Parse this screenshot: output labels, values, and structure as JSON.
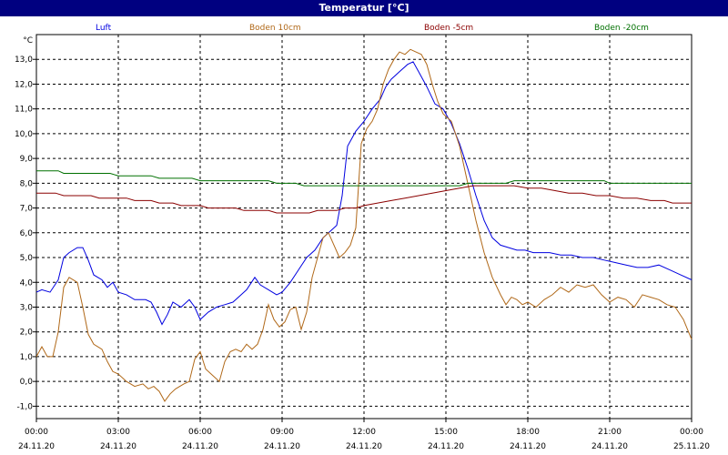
{
  "title": "Temperatur [°C]",
  "chart_data": {
    "type": "line",
    "ylabel": "°C",
    "ylim": [
      -1.5,
      14
    ],
    "yticks": [
      -1.0,
      0.0,
      1.0,
      2.0,
      3.0,
      4.0,
      5.0,
      6.0,
      7.0,
      8.0,
      9.0,
      10.0,
      11.0,
      12.0,
      13.0
    ],
    "ytick_labels": [
      "-1,0",
      "0,0",
      "1,0",
      "2,0",
      "3,0",
      "4,0",
      "5,0",
      "6,0",
      "7,0",
      "8,0",
      "9,0",
      "10,0",
      "11,0",
      "12,0",
      "13,0"
    ],
    "xlim": [
      0,
      24
    ],
    "xticks": [
      0,
      3,
      6,
      9,
      12,
      15,
      18,
      21,
      24
    ],
    "xtick_times": [
      "00:00",
      "03:00",
      "06:00",
      "09:00",
      "12:00",
      "15:00",
      "18:00",
      "21:00",
      "00:00"
    ],
    "xtick_dates": [
      "24.11.20",
      "24.11.20",
      "24.11.20",
      "24.11.20",
      "24.11.20",
      "24.11.20",
      "24.11.20",
      "24.11.20",
      "25.11.20"
    ],
    "grid": true,
    "legend_position": "top",
    "series": [
      {
        "name": "Luft",
        "color": "#0000e0",
        "x": [
          0,
          0.2,
          0.5,
          0.8,
          1.0,
          1.2,
          1.5,
          1.7,
          1.9,
          2.1,
          2.4,
          2.6,
          2.8,
          3.0,
          3.3,
          3.6,
          4.0,
          4.2,
          4.4,
          4.6,
          4.8,
          5.0,
          5.3,
          5.6,
          5.8,
          6.0,
          6.3,
          6.6,
          6.9,
          7.2,
          7.5,
          7.7,
          8.0,
          8.2,
          8.5,
          8.8,
          9.0,
          9.3,
          9.6,
          9.9,
          10.2,
          10.5,
          10.8,
          11.0,
          11.2,
          11.4,
          11.7,
          12.0,
          12.3,
          12.6,
          12.8,
          13.0,
          13.3,
          13.6,
          13.8,
          14.0,
          14.3,
          14.6,
          14.9,
          15.2,
          15.5,
          15.8,
          16.1,
          16.4,
          16.7,
          17.0,
          17.3,
          17.6,
          17.9,
          18.2,
          18.5,
          18.8,
          19.2,
          19.6,
          20.0,
          20.4,
          20.8,
          21.2,
          21.6,
          22.0,
          22.4,
          22.8,
          23.2,
          23.6,
          24.0
        ],
        "y": [
          3.6,
          3.7,
          3.6,
          4.1,
          5.0,
          5.2,
          5.4,
          5.4,
          4.9,
          4.3,
          4.1,
          3.8,
          4.0,
          3.6,
          3.5,
          3.3,
          3.3,
          3.2,
          2.8,
          2.3,
          2.7,
          3.2,
          3.0,
          3.3,
          3.0,
          2.5,
          2.8,
          3.0,
          3.1,
          3.2,
          3.5,
          3.7,
          4.2,
          3.9,
          3.7,
          3.5,
          3.6,
          4.0,
          4.5,
          5.0,
          5.3,
          5.8,
          6.1,
          6.3,
          7.5,
          9.5,
          10.1,
          10.5,
          11.0,
          11.4,
          11.9,
          12.2,
          12.5,
          12.8,
          12.9,
          12.5,
          11.9,
          11.2,
          11.0,
          10.4,
          9.6,
          8.6,
          7.5,
          6.5,
          5.8,
          5.5,
          5.4,
          5.3,
          5.3,
          5.2,
          5.2,
          5.2,
          5.1,
          5.1,
          5.0,
          5.0,
          4.9,
          4.8,
          4.7,
          4.6,
          4.6,
          4.7,
          4.5,
          4.3,
          4.1
        ]
      },
      {
        "name": "Boden 10cm",
        "color": "#b06818",
        "x": [
          0,
          0.2,
          0.4,
          0.6,
          0.8,
          1.0,
          1.2,
          1.5,
          1.7,
          1.9,
          2.1,
          2.4,
          2.6,
          2.8,
          3.0,
          3.3,
          3.6,
          3.9,
          4.1,
          4.3,
          4.5,
          4.7,
          4.9,
          5.1,
          5.4,
          5.6,
          5.8,
          6.0,
          6.2,
          6.5,
          6.7,
          6.9,
          7.1,
          7.3,
          7.5,
          7.7,
          7.9,
          8.1,
          8.3,
          8.5,
          8.7,
          8.9,
          9.1,
          9.3,
          9.5,
          9.7,
          9.9,
          10.1,
          10.3,
          10.5,
          10.7,
          10.9,
          11.1,
          11.3,
          11.5,
          11.7,
          11.9,
          12.1,
          12.3,
          12.5,
          12.7,
          12.9,
          13.1,
          13.3,
          13.5,
          13.7,
          13.9,
          14.1,
          14.3,
          14.5,
          14.7,
          14.9,
          15.2,
          15.5,
          15.8,
          16.1,
          16.4,
          16.7,
          17.0,
          17.2,
          17.4,
          17.6,
          17.8,
          18.0,
          18.3,
          18.6,
          18.9,
          19.2,
          19.5,
          19.8,
          20.1,
          20.4,
          20.7,
          21.0,
          21.3,
          21.6,
          21.9,
          22.2,
          22.5,
          22.8,
          23.1,
          23.4,
          23.7,
          24.0
        ],
        "y": [
          1.0,
          1.4,
          1.0,
          1.0,
          2.0,
          3.8,
          4.2,
          4.0,
          3.0,
          1.9,
          1.5,
          1.3,
          0.8,
          0.4,
          0.3,
          0.0,
          -0.2,
          -0.1,
          -0.3,
          -0.2,
          -0.4,
          -0.8,
          -0.5,
          -0.3,
          -0.1,
          0.0,
          0.9,
          1.2,
          0.5,
          0.2,
          0.0,
          0.8,
          1.2,
          1.3,
          1.2,
          1.5,
          1.3,
          1.5,
          2.1,
          3.1,
          2.5,
          2.2,
          2.4,
          2.9,
          3.0,
          2.1,
          2.8,
          4.2,
          5.0,
          5.8,
          6.0,
          5.5,
          5.0,
          5.2,
          5.5,
          6.2,
          9.6,
          10.2,
          10.5,
          11.0,
          12.0,
          12.6,
          13.0,
          13.3,
          13.2,
          13.4,
          13.3,
          13.2,
          12.8,
          12.0,
          11.3,
          10.8,
          10.5,
          9.5,
          8.0,
          6.5,
          5.2,
          4.2,
          3.5,
          3.1,
          3.4,
          3.3,
          3.1,
          3.2,
          3.0,
          3.3,
          3.5,
          3.8,
          3.6,
          3.9,
          3.8,
          3.9,
          3.5,
          3.2,
          3.4,
          3.3,
          3.0,
          3.5,
          3.4,
          3.3,
          3.1,
          3.0,
          2.5,
          1.7
        ]
      },
      {
        "name": "Boden -5cm",
        "color": "#8b0000",
        "x": [
          0,
          0.7,
          1.0,
          2.0,
          2.3,
          3.3,
          3.6,
          4.2,
          4.5,
          5.0,
          5.3,
          6.0,
          6.3,
          7.3,
          7.6,
          8.5,
          8.8,
          10.0,
          10.3,
          11.0,
          11.3,
          11.7,
          12.0,
          12.5,
          13.0,
          13.5,
          14.0,
          14.5,
          15.0,
          15.5,
          16.0,
          17.0,
          17.5,
          18.0,
          18.5,
          19.0,
          19.5,
          20.0,
          20.5,
          21.0,
          21.5,
          22.0,
          22.5,
          23.0,
          23.3,
          24.0
        ],
        "y": [
          7.6,
          7.6,
          7.5,
          7.5,
          7.4,
          7.4,
          7.3,
          7.3,
          7.2,
          7.2,
          7.1,
          7.1,
          7.0,
          7.0,
          6.9,
          6.9,
          6.8,
          6.8,
          6.9,
          6.9,
          7.0,
          7.0,
          7.1,
          7.2,
          7.3,
          7.4,
          7.5,
          7.6,
          7.7,
          7.8,
          7.9,
          7.9,
          7.9,
          7.8,
          7.8,
          7.7,
          7.6,
          7.6,
          7.5,
          7.5,
          7.4,
          7.4,
          7.3,
          7.3,
          7.2,
          7.2
        ]
      },
      {
        "name": "Boden -20cm",
        "color": "#007000",
        "x": [
          0,
          0.8,
          1.0,
          2.7,
          3.0,
          4.2,
          4.5,
          5.7,
          6.0,
          8.5,
          8.8,
          9.5,
          9.8,
          15.5,
          15.8,
          17.2,
          17.5,
          20.8,
          21.0,
          22.3,
          22.5,
          24.0
        ],
        "y": [
          8.5,
          8.5,
          8.4,
          8.4,
          8.3,
          8.3,
          8.2,
          8.2,
          8.1,
          8.1,
          8.0,
          8.0,
          7.9,
          7.9,
          8.0,
          8.0,
          8.1,
          8.1,
          8.0,
          8.0,
          8.0,
          8.0
        ]
      }
    ]
  }
}
